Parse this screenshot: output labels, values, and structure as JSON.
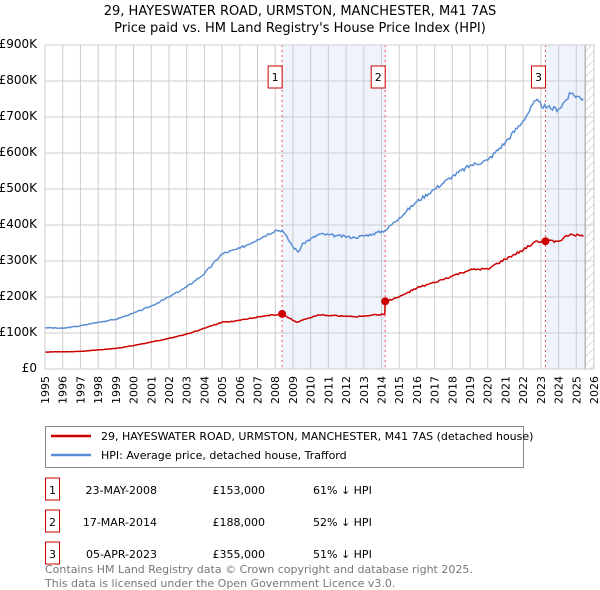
{
  "chart_data": {
    "type": "line",
    "title": "29, HAYESWATER ROAD, URMSTON, MANCHESTER, M41 7AS",
    "subtitle": "Price paid vs. HM Land Registry's House Price Index (HPI)",
    "xlim": [
      1995,
      2026
    ],
    "ylim": [
      0,
      900000
    ],
    "yticks": [
      0,
      100000,
      200000,
      300000,
      400000,
      500000,
      600000,
      700000,
      800000,
      900000
    ],
    "ytick_labels": [
      "£0",
      "£100K",
      "£200K",
      "£300K",
      "£400K",
      "£500K",
      "£600K",
      "£700K",
      "£800K",
      "£900K"
    ],
    "xticks": [
      1995,
      1996,
      1997,
      1998,
      1999,
      2000,
      2001,
      2002,
      2003,
      2004,
      2005,
      2006,
      2007,
      2008,
      2009,
      2010,
      2011,
      2012,
      2013,
      2014,
      2015,
      2016,
      2017,
      2018,
      2019,
      2020,
      2021,
      2022,
      2023,
      2024,
      2025,
      2026
    ],
    "grid": true,
    "shaded_ranges": [
      [
        2008.39,
        2014.21
      ],
      [
        2023.26,
        2025.5
      ]
    ],
    "hatched_range": [
      2025.5,
      2026
    ],
    "series": [
      {
        "name": "29, HAYESWATER ROAD, URMSTON, MANCHESTER, M41 7AS (detached house)",
        "color": "#cc0000",
        "points": [
          [
            1995,
            47000
          ],
          [
            1997,
            49000
          ],
          [
            1998,
            53000
          ],
          [
            1999,
            57000
          ],
          [
            2000,
            65000
          ],
          [
            2001,
            75000
          ],
          [
            2002,
            85000
          ],
          [
            2003,
            97000
          ],
          [
            2004,
            113000
          ],
          [
            2005,
            130000
          ],
          [
            2006,
            135000
          ],
          [
            2007,
            145000
          ],
          [
            2008.39,
            153000
          ],
          [
            2009.2,
            130000
          ],
          [
            2009.8,
            140000
          ],
          [
            2010.5,
            150000
          ],
          [
            2011.5,
            148000
          ],
          [
            2012.5,
            145000
          ],
          [
            2013.5,
            150000
          ],
          [
            2014.19,
            152000
          ],
          [
            2014.21,
            188000
          ],
          [
            2015,
            200000
          ],
          [
            2016,
            225000
          ],
          [
            2017,
            240000
          ],
          [
            2018,
            258000
          ],
          [
            2019,
            275000
          ],
          [
            2020,
            278000
          ],
          [
            2021,
            305000
          ],
          [
            2022,
            330000
          ],
          [
            2022.7,
            355000
          ],
          [
            2023.26,
            355000
          ],
          [
            2024,
            355000
          ],
          [
            2024.7,
            375000
          ],
          [
            2025.4,
            368000
          ]
        ]
      },
      {
        "name": "HPI: Average price, detached house, Trafford",
        "color": "#5b8fd4",
        "points": [
          [
            1995,
            115000
          ],
          [
            1996,
            113000
          ],
          [
            1997,
            120000
          ],
          [
            1998,
            130000
          ],
          [
            1999,
            138000
          ],
          [
            2000,
            155000
          ],
          [
            2001,
            175000
          ],
          [
            2002,
            200000
          ],
          [
            2003,
            228000
          ],
          [
            2004,
            265000
          ],
          [
            2005,
            320000
          ],
          [
            2006,
            335000
          ],
          [
            2007,
            360000
          ],
          [
            2008,
            385000
          ],
          [
            2008.4,
            385000
          ],
          [
            2009,
            340000
          ],
          [
            2009.3,
            325000
          ],
          [
            2009.6,
            350000
          ],
          [
            2010.5,
            375000
          ],
          [
            2011.5,
            370000
          ],
          [
            2012.5,
            365000
          ],
          [
            2013.5,
            375000
          ],
          [
            2014.2,
            385000
          ],
          [
            2015,
            420000
          ],
          [
            2016,
            465000
          ],
          [
            2017,
            500000
          ],
          [
            2018,
            535000
          ],
          [
            2019,
            565000
          ],
          [
            2020,
            580000
          ],
          [
            2021,
            630000
          ],
          [
            2022,
            690000
          ],
          [
            2022.7,
            745000
          ],
          [
            2023.3,
            725000
          ],
          [
            2024,
            722000
          ],
          [
            2024.7,
            765000
          ],
          [
            2025.4,
            750000
          ]
        ]
      }
    ],
    "sales": [
      {
        "num": "1",
        "x": 2008.39,
        "y": 153000,
        "date": "23-MAY-2008",
        "price": "£153,000",
        "hpi": "61% ↓ HPI"
      },
      {
        "num": "2",
        "x": 2014.21,
        "y": 188000,
        "date": "17-MAR-2014",
        "price": "£188,000",
        "hpi": "52% ↓ HPI"
      },
      {
        "num": "3",
        "x": 2023.26,
        "y": 355000,
        "date": "05-APR-2023",
        "price": "£355,000",
        "hpi": "51% ↓ HPI"
      }
    ]
  },
  "footer": {
    "line1": "Contains HM Land Registry data © Crown copyright and database right 2025.",
    "line2": "This data is licensed under the Open Government Licence v3.0."
  }
}
